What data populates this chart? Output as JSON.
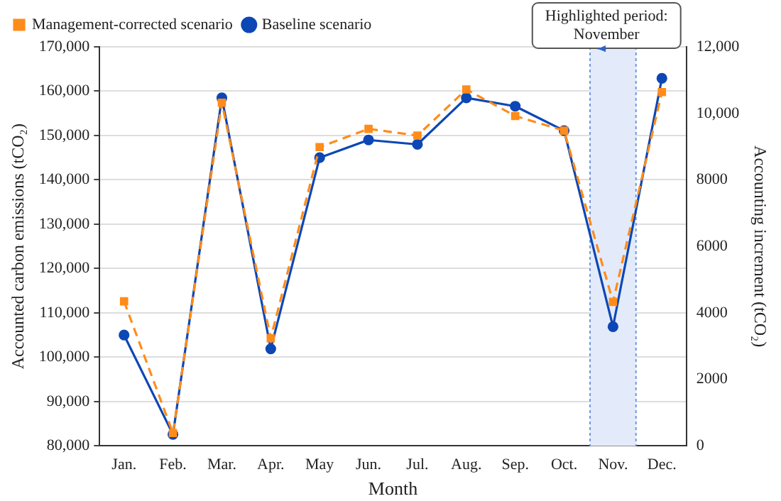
{
  "chart_data": {
    "type": "line",
    "xlabel": "Month",
    "ylabel": "Accounted carbon emissions (tCO₂)",
    "y2label": "Accounting increment (tCO₂)",
    "categories": [
      "Jan.",
      "Feb.",
      "Mar.",
      "Apr.",
      "May",
      "Jun.",
      "Jul.",
      "Aug.",
      "Sep.",
      "Oct.",
      "Nov.",
      "Dec."
    ],
    "series": [
      {
        "name": "Baseline scenario",
        "color": "#0d47b5",
        "marker": "circle",
        "line_style": "solid",
        "values": [
          105000,
          82600,
          158500,
          101900,
          145000,
          149000,
          148000,
          158500,
          156600,
          151100,
          106900,
          162900
        ]
      },
      {
        "name": "Management-corrected scenario",
        "color": "#ff8c1a",
        "marker": "square",
        "line_style": "dashed",
        "values": [
          112600,
          82900,
          157400,
          104300,
          147400,
          151500,
          150000,
          160400,
          154400,
          151100,
          112500,
          159800
        ]
      }
    ],
    "ylim": [
      80000,
      170000
    ],
    "yticks": [
      {
        "value": 80000,
        "label": "80,000"
      },
      {
        "value": 90000,
        "label": "90,000"
      },
      {
        "value": 100000,
        "label": "100,000"
      },
      {
        "value": 110000,
        "label": "110,000"
      },
      {
        "value": 120000,
        "label": "120,000"
      },
      {
        "value": 130000,
        "label": "130,000"
      },
      {
        "value": 140000,
        "label": "140,000"
      },
      {
        "value": 150000,
        "label": "150,000"
      },
      {
        "value": 160000,
        "label": "160,000"
      },
      {
        "value": 170000,
        "label": "170,000"
      }
    ],
    "y2lim": [
      0,
      12000
    ],
    "y2ticks": [
      0,
      2000,
      4000,
      6000,
      8000,
      {
        "value": 10000,
        "label": "10,000"
      },
      {
        "value": 12000,
        "label": "12,000"
      }
    ],
    "bands": [
      {
        "axis": "x",
        "from": "Nov.",
        "to": "Nov.",
        "color": "#e3ebfa"
      }
    ],
    "annotations": [
      "Highlighted period: November"
    ],
    "grid": "y",
    "legend": "top left"
  }
}
